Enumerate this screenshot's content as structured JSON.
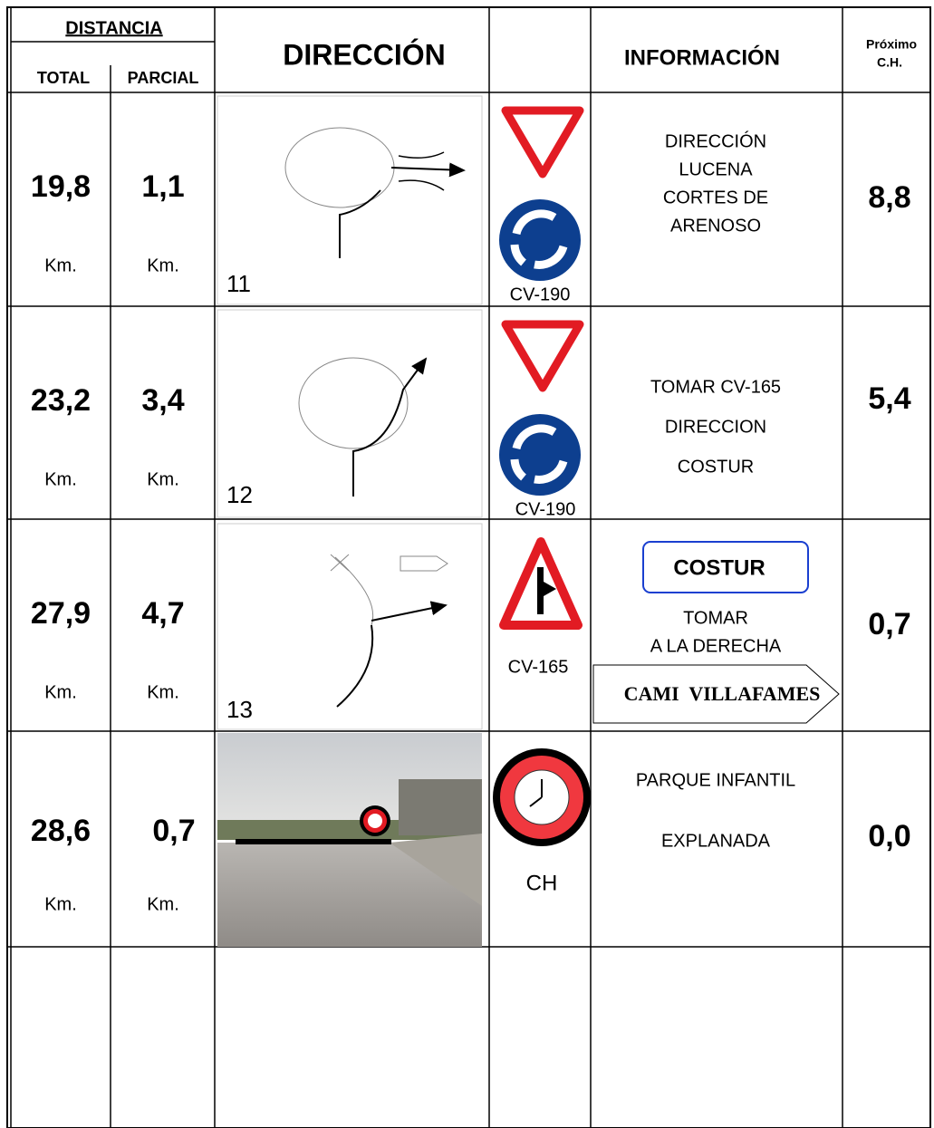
{
  "header": {
    "distancia": "DISTANCIA",
    "total": "TOTAL",
    "parcial": "PARCIAL",
    "direccion": "DIRECCIÓN",
    "informacion": "INFORMACIÓN",
    "proximo": "Próximo",
    "ch": "C.H."
  },
  "rows": [
    {
      "total": "19,8",
      "total_unit": "Km.",
      "parcial": "1,1",
      "parcial_unit": "Km.",
      "diagram_number": "11",
      "sign_label": "CV-190",
      "info": [
        "DIRECCIÓN",
        "LUCENA",
        "CORTES DE",
        "ARENOSO"
      ],
      "next_ch": "8,8"
    },
    {
      "total": "23,2",
      "total_unit": "Km.",
      "parcial": "3,4",
      "parcial_unit": "Km.",
      "diagram_number": "12",
      "sign_label": "CV-190",
      "info": [
        "TOMAR CV-165",
        "DIRECCION",
        "COSTUR"
      ],
      "next_ch": "5,4"
    },
    {
      "total": "27,9",
      "total_unit": "Km.",
      "parcial": "4,7",
      "parcial_unit": "Km.",
      "diagram_number": "13",
      "sign_label": "CV-165",
      "info_box": "COSTUR",
      "info": [
        "TOMAR",
        "A LA DERECHA"
      ],
      "road_sign": "CAMI  VILLAFAMES",
      "next_ch": "0,7"
    },
    {
      "total": "28,6",
      "total_unit": "Km.",
      "parcial": "0,7",
      "parcial_unit": "Km.",
      "sign_label": "CH",
      "info": [
        "PARQUE INFANTIL",
        "EXPLANADA"
      ],
      "next_ch": "0,0"
    }
  ]
}
